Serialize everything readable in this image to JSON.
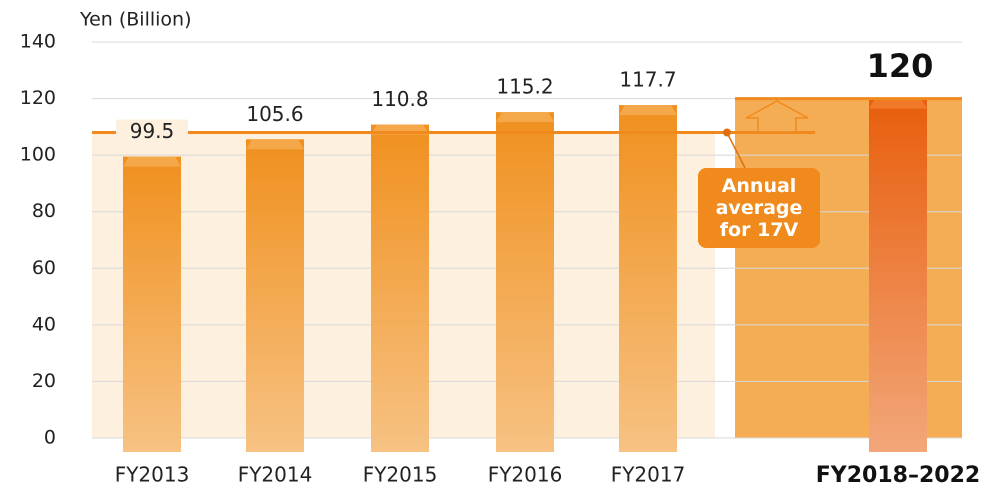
{
  "chart_data": {
    "type": "bar",
    "y_axis_label": "Yen (Billion)",
    "categories": [
      "FY2013",
      "FY2014",
      "FY2015",
      "FY2016",
      "FY2017",
      "FY2018–2022"
    ],
    "values": [
      99.5,
      105.6,
      110.8,
      115.2,
      117.7,
      120
    ],
    "colors": [
      "#f0901e",
      "#f0901e",
      "#f0901e",
      "#f0901e",
      "#f0901e",
      "#e85e0c"
    ],
    "ylim": [
      0,
      140
    ],
    "yticks": [
      0,
      20,
      40,
      60,
      80,
      100,
      120,
      140
    ],
    "grid": true,
    "average_line": 108,
    "annotation": "Annual average for 17V"
  }
}
